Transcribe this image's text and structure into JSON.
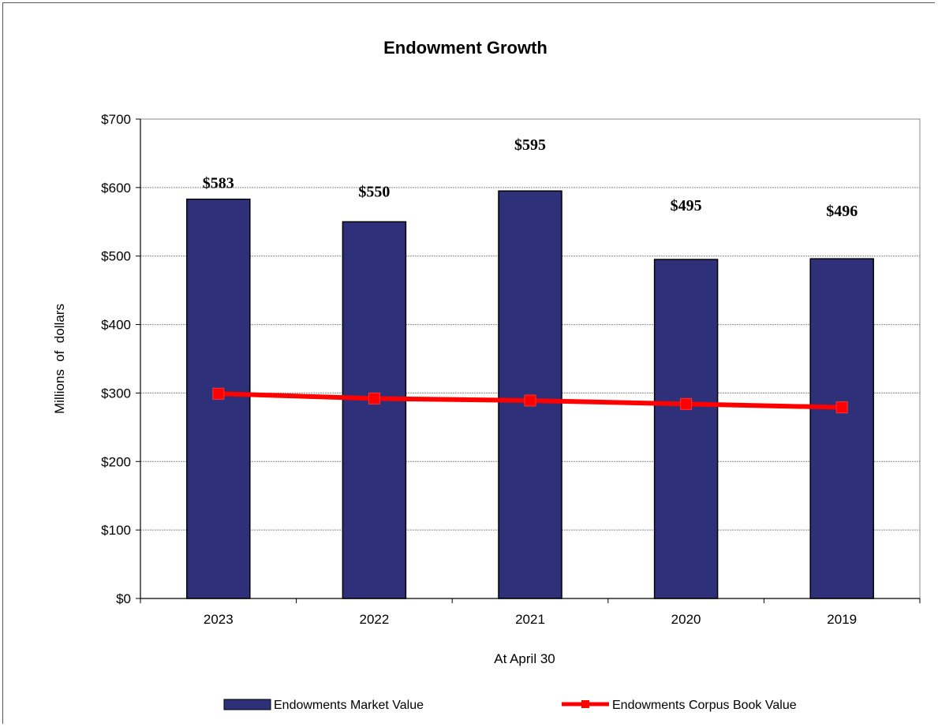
{
  "chart_data": {
    "type": "bar",
    "title": "Endowment Growth",
    "xlabel": "At April 30",
    "ylabel": "Millions of dollars",
    "categories": [
      "2023",
      "2022",
      "2021",
      "2020",
      "2019"
    ],
    "ylim": [
      0,
      700
    ],
    "y_ticks": [
      0,
      100,
      200,
      300,
      400,
      500,
      600,
      700
    ],
    "y_tick_labels": [
      "$0",
      "$100",
      "$200",
      "$300",
      "$400",
      "$500",
      "$600",
      "$700"
    ],
    "grid": true,
    "legend_position": "bottom",
    "series": [
      {
        "name": "Endowments Market Value",
        "kind": "bar",
        "color": "#2E3079",
        "values": [
          583,
          550,
          595,
          495,
          496
        ],
        "data_labels": [
          "$583",
          "$550",
          "$595",
          "$495",
          "$496"
        ]
      },
      {
        "name": "Endowments Corpus Book Value",
        "kind": "line",
        "marker": "square",
        "color": "#FF0000",
        "values": [
          299,
          292,
          289,
          284,
          279
        ]
      }
    ]
  }
}
